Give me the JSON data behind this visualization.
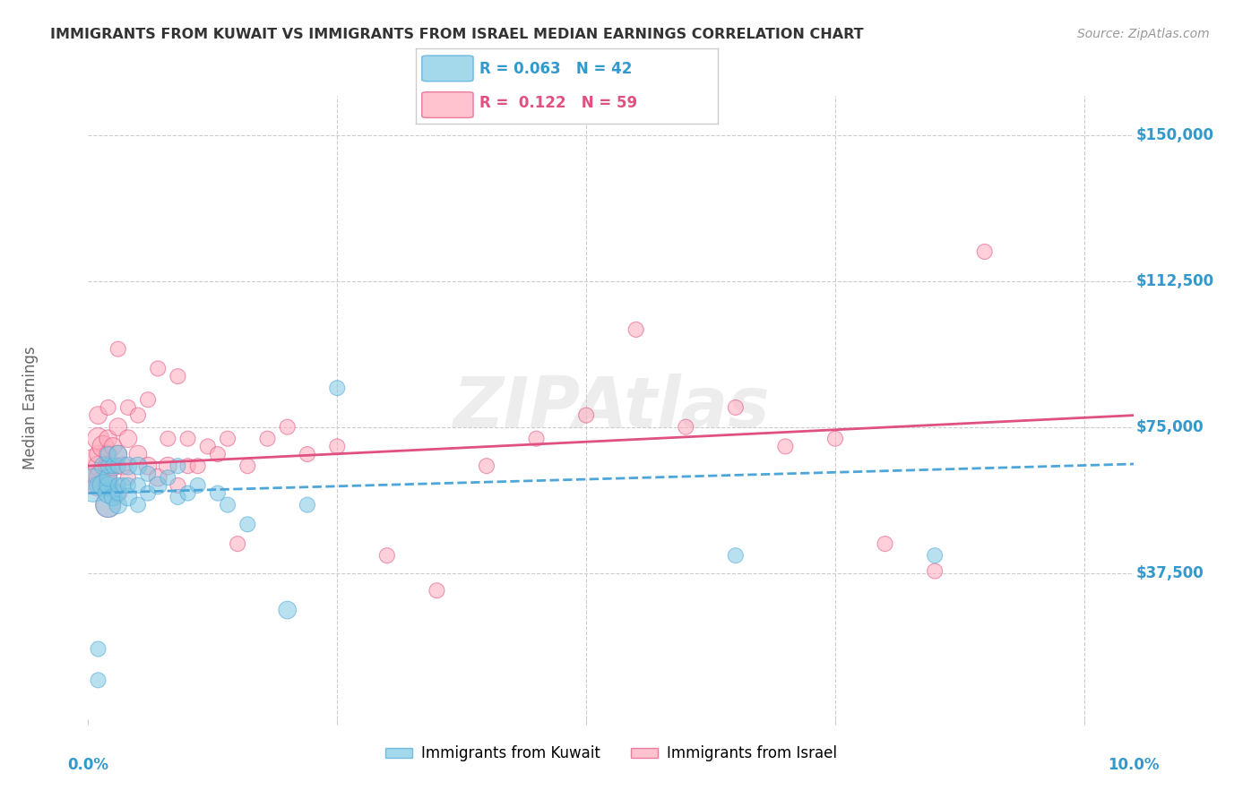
{
  "title": "IMMIGRANTS FROM KUWAIT VS IMMIGRANTS FROM ISRAEL MEDIAN EARNINGS CORRELATION CHART",
  "source": "Source: ZipAtlas.com",
  "ylabel": "Median Earnings",
  "y_ticks": [
    0,
    37500,
    75000,
    112500,
    150000
  ],
  "y_tick_labels": [
    "",
    "$37,500",
    "$75,000",
    "$112,500",
    "$150,000"
  ],
  "y_min": 0,
  "y_max": 160000,
  "x_min": 0.0,
  "x_max": 0.105,
  "legend_r_kuwait": "0.063",
  "legend_n_kuwait": "42",
  "legend_r_israel": "0.122",
  "legend_n_israel": "59",
  "color_kuwait": "#7ec8e3",
  "color_israel": "#ffaabb",
  "color_kuwait_line": "#4da6d9",
  "color_israel_line": "#e05080",
  "color_axis_labels": "#3399cc",
  "color_title": "#333333",
  "background_color": "#ffffff",
  "kuwait_x": [
    0.0005,
    0.001,
    0.001,
    0.001,
    0.0015,
    0.0015,
    0.002,
    0.002,
    0.002,
    0.002,
    0.002,
    0.002,
    0.0025,
    0.0025,
    0.003,
    0.003,
    0.003,
    0.003,
    0.003,
    0.0035,
    0.004,
    0.004,
    0.004,
    0.005,
    0.005,
    0.005,
    0.006,
    0.006,
    0.007,
    0.008,
    0.009,
    0.009,
    0.01,
    0.011,
    0.013,
    0.014,
    0.016,
    0.02,
    0.022,
    0.025,
    0.065,
    0.085
  ],
  "kuwait_y": [
    60000,
    10000,
    18000,
    60000,
    60000,
    65000,
    55000,
    58000,
    60000,
    62000,
    65000,
    68000,
    57000,
    65000,
    55000,
    58000,
    60000,
    65000,
    68000,
    60000,
    57000,
    60000,
    65000,
    55000,
    60000,
    65000,
    58000,
    63000,
    60000,
    62000,
    57000,
    65000,
    58000,
    60000,
    58000,
    55000,
    50000,
    28000,
    55000,
    85000,
    42000,
    42000
  ],
  "kuwait_size": [
    700,
    150,
    150,
    200,
    300,
    200,
    400,
    250,
    200,
    200,
    150,
    150,
    200,
    150,
    200,
    150,
    150,
    150,
    200,
    150,
    200,
    150,
    200,
    150,
    150,
    200,
    150,
    150,
    200,
    150,
    150,
    150,
    150,
    150,
    150,
    150,
    150,
    200,
    150,
    150,
    150,
    150
  ],
  "israel_x": [
    0.0005,
    0.001,
    0.001,
    0.001,
    0.001,
    0.001,
    0.0015,
    0.0015,
    0.002,
    0.002,
    0.002,
    0.002,
    0.002,
    0.002,
    0.0025,
    0.0025,
    0.003,
    0.003,
    0.003,
    0.003,
    0.0035,
    0.004,
    0.004,
    0.004,
    0.005,
    0.005,
    0.006,
    0.006,
    0.007,
    0.007,
    0.008,
    0.008,
    0.009,
    0.009,
    0.01,
    0.01,
    0.011,
    0.012,
    0.013,
    0.014,
    0.015,
    0.016,
    0.018,
    0.02,
    0.022,
    0.025,
    0.03,
    0.035,
    0.04,
    0.045,
    0.05,
    0.055,
    0.06,
    0.065,
    0.07,
    0.075,
    0.08,
    0.085,
    0.09
  ],
  "israel_y": [
    65000,
    60000,
    65000,
    68000,
    72000,
    78000,
    62000,
    70000,
    55000,
    60000,
    65000,
    68000,
    72000,
    80000,
    65000,
    70000,
    58000,
    68000,
    75000,
    95000,
    65000,
    62000,
    72000,
    80000,
    68000,
    78000,
    65000,
    82000,
    62000,
    90000,
    65000,
    72000,
    60000,
    88000,
    65000,
    72000,
    65000,
    70000,
    68000,
    72000,
    45000,
    65000,
    72000,
    75000,
    68000,
    70000,
    42000,
    33000,
    65000,
    72000,
    78000,
    100000,
    75000,
    80000,
    70000,
    72000,
    45000,
    38000,
    120000
  ],
  "israel_size": [
    700,
    300,
    250,
    200,
    300,
    200,
    500,
    300,
    400,
    300,
    250,
    200,
    200,
    150,
    250,
    200,
    200,
    200,
    200,
    150,
    200,
    150,
    200,
    150,
    200,
    150,
    200,
    150,
    200,
    150,
    200,
    150,
    150,
    150,
    150,
    150,
    150,
    150,
    150,
    150,
    150,
    150,
    150,
    150,
    150,
    150,
    150,
    150,
    150,
    150,
    150,
    150,
    150,
    150,
    150,
    150,
    150,
    150,
    150
  ],
  "kuwait_line_x0": 0.0,
  "kuwait_line_x1": 0.105,
  "kuwait_line_y0": 58000,
  "kuwait_line_y1": 65500,
  "israel_line_x0": 0.0,
  "israel_line_x1": 0.105,
  "israel_line_y0": 65000,
  "israel_line_y1": 78000
}
